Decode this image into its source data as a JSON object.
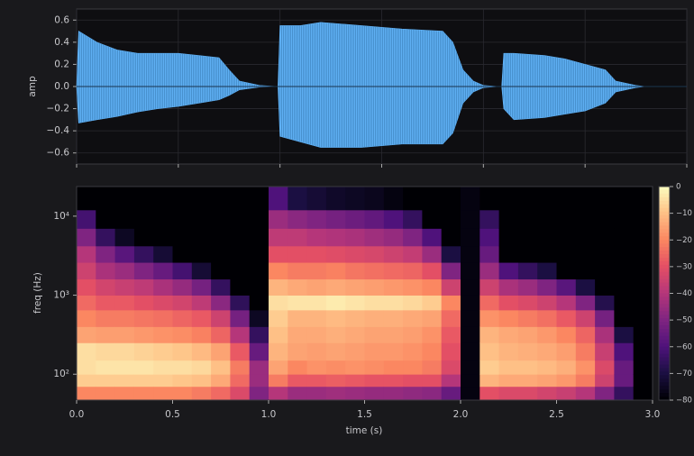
{
  "chart_data": [
    {
      "type": "area",
      "ylabel": "amp",
      "color": "#5fb0f4",
      "xlim": [
        0,
        3.0
      ],
      "xticks": [
        0,
        0.5,
        1,
        1.5,
        2,
        2.5,
        3
      ],
      "ylim": [
        -0.7,
        0.7
      ],
      "yticks": [
        0.6,
        0.4,
        0.2,
        {
          "value": 0,
          "label": "0.0"
        },
        {
          "value": -0.2,
          "label": "−0.2"
        },
        {
          "value": -0.4,
          "label": "−0.4"
        },
        {
          "value": -0.6,
          "label": "−0.6"
        }
      ],
      "grid": true,
      "x": [
        0,
        0.01,
        0.1,
        0.2,
        0.3,
        0.4,
        0.5,
        0.6,
        0.7,
        0.75,
        0.8,
        0.9,
        0.99,
        1.0,
        1.1,
        1.2,
        1.4,
        1.6,
        1.8,
        1.85,
        1.9,
        1.95,
        2.0,
        2.08,
        2.09,
        2.1,
        2.15,
        2.3,
        2.4,
        2.5,
        2.6,
        2.65,
        2.75,
        2.8,
        3.0
      ],
      "upper": [
        0,
        0.5,
        0.4,
        0.33,
        0.3,
        0.3,
        0.3,
        0.28,
        0.26,
        0.15,
        0.05,
        0.01,
        0,
        0.55,
        0.55,
        0.58,
        0.55,
        0.52,
        0.5,
        0.4,
        0.15,
        0.05,
        0.01,
        0,
        0,
        0.3,
        0.3,
        0.28,
        0.25,
        0.2,
        0.15,
        0.05,
        0.01,
        0,
        0
      ],
      "lower": [
        0,
        -0.33,
        -0.3,
        -0.27,
        -0.23,
        -0.2,
        -0.18,
        -0.15,
        -0.12,
        -0.08,
        -0.03,
        -0.005,
        0,
        -0.45,
        -0.5,
        -0.55,
        -0.55,
        -0.52,
        -0.52,
        -0.42,
        -0.15,
        -0.05,
        -0.01,
        0,
        0,
        -0.2,
        -0.3,
        -0.28,
        -0.25,
        -0.22,
        -0.15,
        -0.05,
        -0.01,
        0,
        0
      ]
    },
    {
      "type": "heatmap",
      "xlabel": "time (s)",
      "ylabel": "freq (Hz)",
      "colormap": "magma",
      "log_y": true,
      "xlim": [
        0,
        3.0
      ],
      "xticks": [
        {
          "value": 0,
          "label": "0.0"
        },
        0.5,
        {
          "value": 1,
          "label": "1.0"
        },
        1.5,
        {
          "value": 2,
          "label": "2.0"
        },
        2.5,
        {
          "value": 3,
          "label": "3.0"
        }
      ],
      "ylim": [
        47,
        23700
      ],
      "yticks": [
        {
          "value": 100,
          "label": "10²"
        },
        {
          "value": 1000,
          "label": "10³"
        },
        {
          "value": 10000,
          "label": "10⁴"
        }
      ],
      "clim": [
        -80,
        0
      ],
      "cticks": [
        0,
        {
          "value": -10,
          "label": "−10"
        },
        {
          "value": -20,
          "label": "−20"
        },
        {
          "value": -30,
          "label": "−30"
        },
        {
          "value": -40,
          "label": "−40"
        },
        {
          "value": -50,
          "label": "−50"
        },
        {
          "value": -60,
          "label": "−60"
        },
        {
          "value": -70,
          "label": "−70"
        },
        {
          "value": -80,
          "label": "−80"
        }
      ],
      "times": [
        0,
        0.1,
        0.2,
        0.3,
        0.4,
        0.5,
        0.6,
        0.7,
        0.8,
        0.9,
        1.0,
        1.1,
        1.2,
        1.3,
        1.4,
        1.5,
        1.6,
        1.7,
        1.8,
        1.9,
        2.0,
        2.1,
        2.2,
        2.3,
        2.4,
        2.5,
        2.6,
        2.7,
        2.8,
        2.9,
        3.0
      ],
      "freqs": [
        47,
        70,
        100,
        150,
        250,
        400,
        650,
        1000,
        1600,
        2600,
        4200,
        7000,
        12000,
        23700
      ],
      "z": [
        [
          -20,
          -8,
          -5,
          -5,
          -15,
          -20,
          -25,
          -30,
          -35,
          -40,
          -50,
          -62,
          -80
        ],
        [
          -20,
          -8,
          -4,
          -6,
          -16,
          -22,
          -28,
          -34,
          -42,
          -50,
          -65,
          -80,
          -80
        ],
        [
          -20,
          -8,
          -4,
          -6,
          -16,
          -22,
          -28,
          -36,
          -45,
          -58,
          -75,
          -80,
          -80
        ],
        [
          -20,
          -8,
          -4,
          -7,
          -17,
          -23,
          -30,
          -38,
          -50,
          -65,
          -80,
          -80,
          -80
        ],
        [
          -20,
          -8,
          -5,
          -8,
          -18,
          -24,
          -32,
          -42,
          -55,
          -72,
          -80,
          -80,
          -80
        ],
        [
          -20,
          -9,
          -5,
          -9,
          -19,
          -26,
          -34,
          -46,
          -62,
          -80,
          -80,
          -80,
          -80
        ],
        [
          -22,
          -10,
          -6,
          -11,
          -21,
          -28,
          -38,
          -52,
          -72,
          -80,
          -80,
          -80,
          -80
        ],
        [
          -25,
          -14,
          -10,
          -15,
          -26,
          -35,
          -48,
          -65,
          -80,
          -80,
          -80,
          -80,
          -80
        ],
        [
          -32,
          -25,
          -22,
          -28,
          -40,
          -52,
          -66,
          -80,
          -80,
          -80,
          -80,
          -80,
          -80
        ],
        [
          -50,
          -45,
          -45,
          -55,
          -65,
          -75,
          -80,
          -80,
          -80,
          -80,
          -80,
          -80,
          -80
        ],
        [
          -40,
          -22,
          -15,
          -12,
          -10,
          -8,
          -5,
          -12,
          -20,
          -30,
          -38,
          -45,
          -60
        ],
        [
          -45,
          -28,
          -20,
          -15,
          -14,
          -12,
          -4,
          -14,
          -22,
          -30,
          -38,
          -48,
          -70
        ],
        [
          -45,
          -28,
          -18,
          -16,
          -14,
          -12,
          -4,
          -15,
          -22,
          -30,
          -40,
          -50,
          -72
        ],
        [
          -44,
          -27,
          -19,
          -15,
          -13,
          -11,
          -3,
          -14,
          -21,
          -31,
          -41,
          -52,
          -74
        ],
        [
          -45,
          -28,
          -18,
          -16,
          -14,
          -12,
          -4,
          -15,
          -23,
          -32,
          -42,
          -54,
          -75
        ],
        [
          -46,
          -29,
          -19,
          -17,
          -15,
          -13,
          -5,
          -16,
          -24,
          -33,
          -44,
          -56,
          -76
        ],
        [
          -46,
          -29,
          -20,
          -17,
          -15,
          -13,
          -5,
          -17,
          -25,
          -35,
          -46,
          -60,
          -78
        ],
        [
          -47,
          -30,
          -20,
          -18,
          -16,
          -14,
          -6,
          -18,
          -26,
          -37,
          -50,
          -65,
          -80
        ],
        [
          -48,
          -30,
          -22,
          -20,
          -18,
          -15,
          -8,
          -20,
          -30,
          -45,
          -60,
          -80,
          -80
        ],
        [
          -55,
          -40,
          -32,
          -30,
          -28,
          -25,
          -20,
          -35,
          -50,
          -70,
          -80,
          -80,
          -80
        ],
        [
          -78,
          -78,
          -78,
          -78,
          -78,
          -78,
          -78,
          -78,
          -78,
          -78,
          -78,
          -78,
          -78
        ],
        [
          -30,
          -12,
          -8,
          -10,
          -12,
          -18,
          -25,
          -35,
          -45,
          -55,
          -60,
          -65,
          -80
        ],
        [
          -32,
          -14,
          -10,
          -12,
          -14,
          -20,
          -30,
          -42,
          -60,
          -80,
          -80,
          -80,
          -80
        ],
        [
          -32,
          -14,
          -10,
          -13,
          -15,
          -22,
          -32,
          -45,
          -65,
          -80,
          -80,
          -80,
          -80
        ],
        [
          -34,
          -15,
          -11,
          -14,
          -17,
          -24,
          -35,
          -50,
          -70,
          -80,
          -80,
          -80,
          -80
        ],
        [
          -36,
          -17,
          -13,
          -16,
          -20,
          -28,
          -40,
          -58,
          -80,
          -80,
          -80,
          -80,
          -80
        ],
        [
          -40,
          -22,
          -18,
          -22,
          -26,
          -35,
          -50,
          -70,
          -80,
          -80,
          -80,
          -80,
          -80
        ],
        [
          -50,
          -35,
          -32,
          -36,
          -42,
          -52,
          -68,
          -80,
          -80,
          -80,
          -80,
          -80,
          -80
        ],
        [
          -65,
          -55,
          -55,
          -60,
          -70,
          -80,
          -80,
          -80,
          -80,
          -80,
          -80,
          -80,
          -80
        ],
        [
          -80,
          -80,
          -80,
          -80,
          -80,
          -80,
          -80,
          -80,
          -80,
          -80,
          -80,
          -80,
          -80
        ]
      ]
    }
  ]
}
